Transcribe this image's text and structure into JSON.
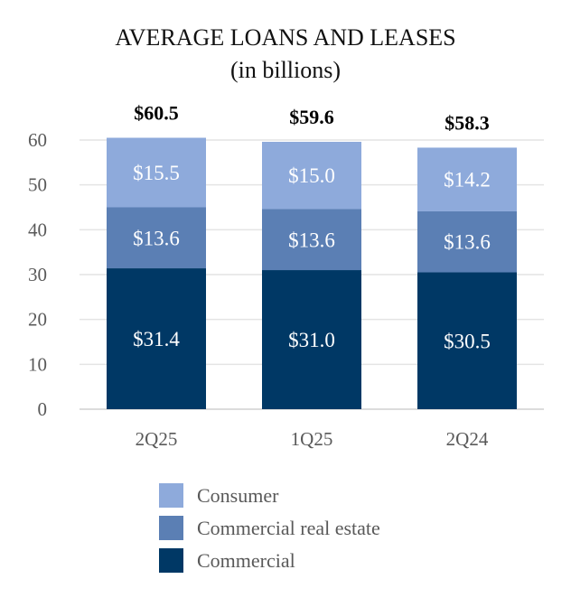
{
  "chart_data": {
    "type": "bar",
    "stacked": true,
    "title": "AVERAGE LOANS AND LEASES",
    "subtitle": "(in billions)",
    "categories": [
      "2Q25",
      "1Q25",
      "2Q24"
    ],
    "series": [
      {
        "name": "Commercial",
        "values": [
          31.4,
          31.0,
          30.5
        ],
        "labels": [
          "$31.4",
          "$31.0",
          "$30.5"
        ],
        "color": "#003865"
      },
      {
        "name": "Commercial real estate",
        "values": [
          13.6,
          13.6,
          13.6
        ],
        "labels": [
          "$13.6",
          "$13.6",
          "$13.6"
        ],
        "color": "#5b7fb4"
      },
      {
        "name": "Consumer",
        "values": [
          15.5,
          15.0,
          14.2
        ],
        "labels": [
          "$15.5",
          "$15.0",
          "$14.2"
        ],
        "color": "#8eaadb"
      }
    ],
    "totals": [
      "$60.5",
      "$59.6",
      "$58.3"
    ],
    "yticks": [
      "0",
      "10",
      "20",
      "30",
      "40",
      "50",
      "60"
    ],
    "ylim": [
      0,
      60
    ],
    "ytick_step": 10,
    "grid": true,
    "legend_position": "bottom",
    "legend_order": [
      "Consumer",
      "Commercial real estate",
      "Commercial"
    ]
  }
}
